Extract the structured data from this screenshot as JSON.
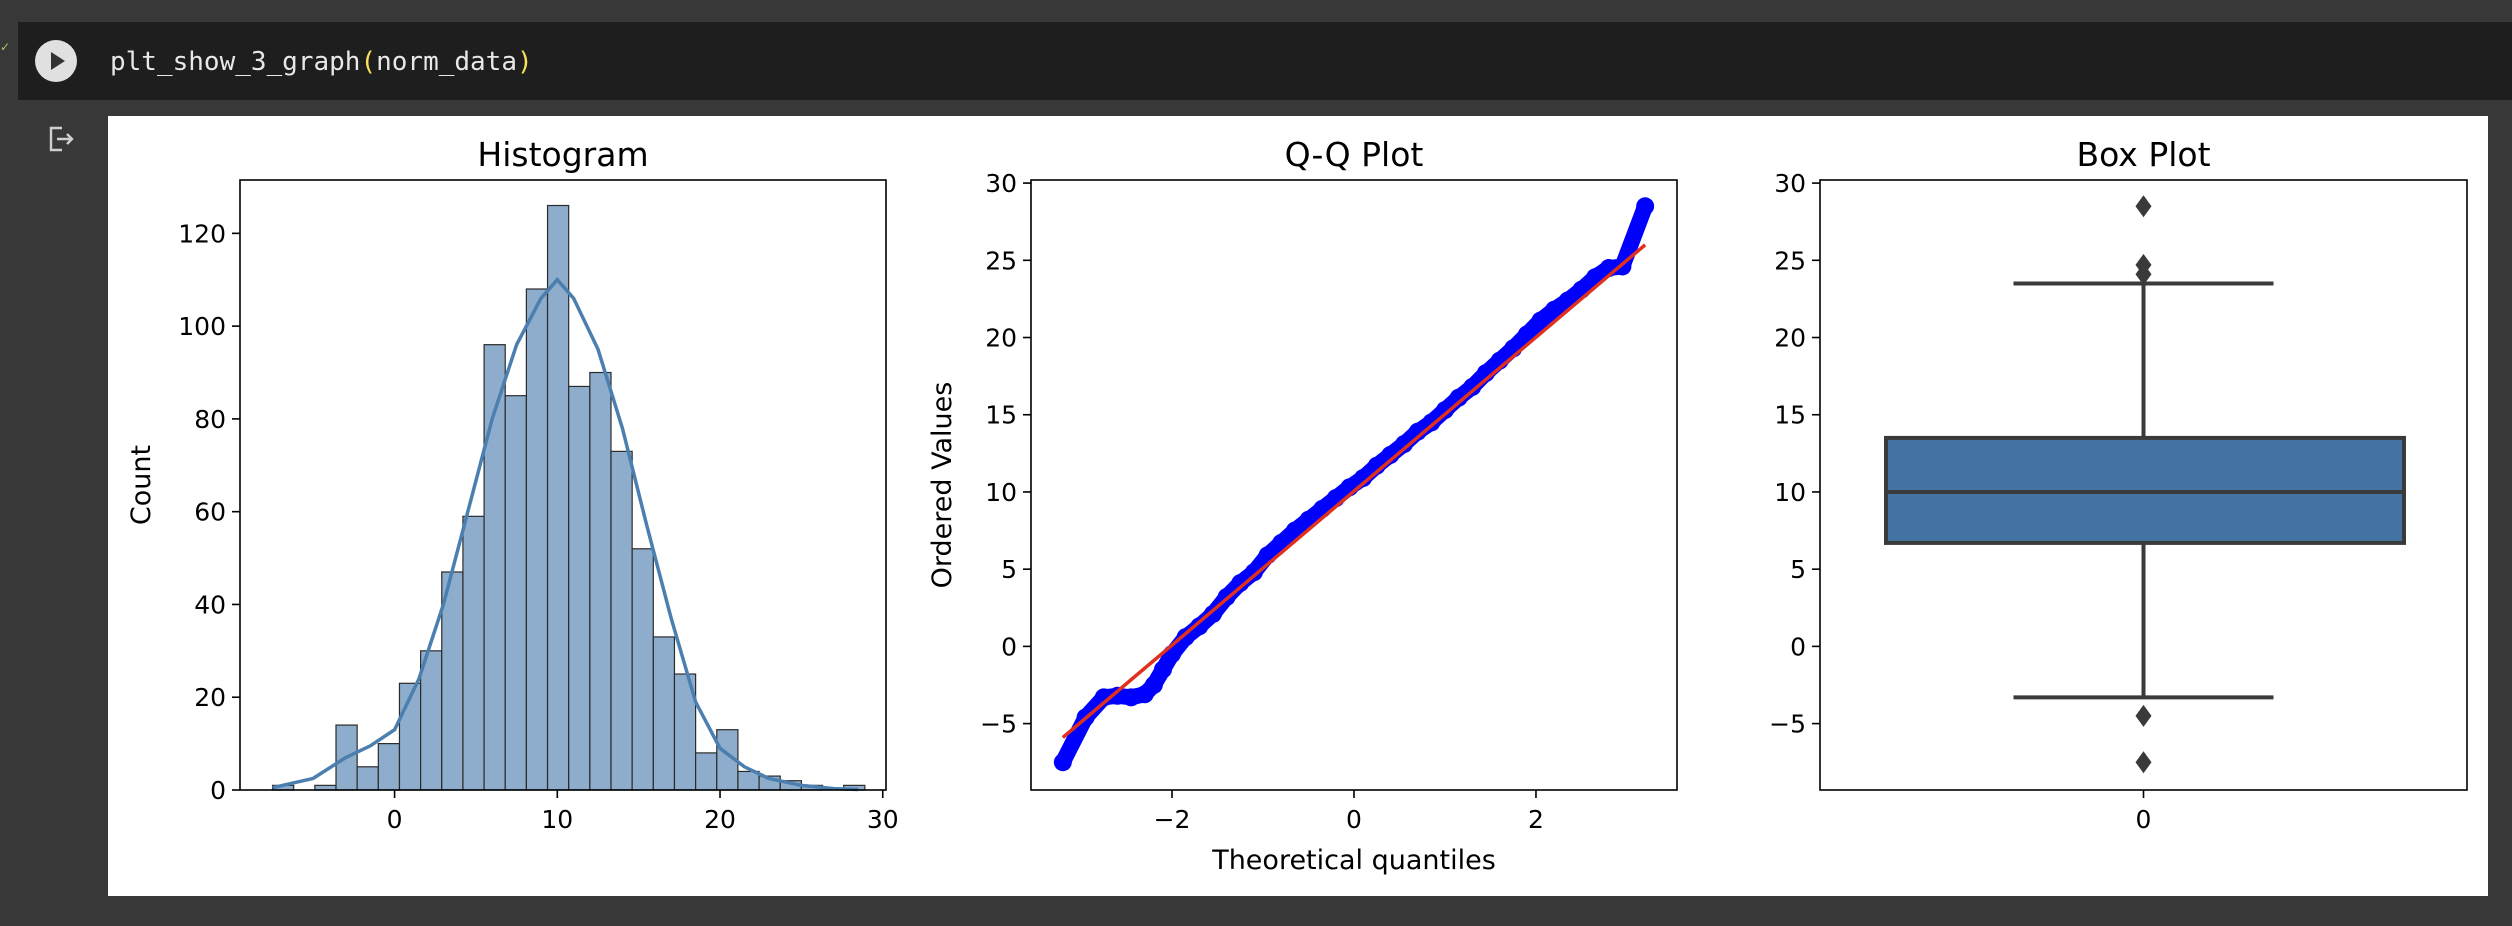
{
  "cell": {
    "code_fn": "plt_show_3_graph",
    "code_open": "(",
    "code_arg": "norm_data",
    "code_close": ")"
  },
  "colors": {
    "hist_fill": "#8eadcc",
    "kde_line": "#4a7fb0",
    "qq_points": "#0000ff",
    "qq_line": "#e0301e",
    "box_fill": "#4273a3",
    "box_line": "#3a3a3a"
  },
  "chart_data": [
    {
      "type": "bar",
      "title": "Histogram",
      "xlabel": "",
      "ylabel": "Count",
      "xlim": [
        -9.5,
        30.2
      ],
      "ylim": [
        0,
        131.5
      ],
      "xticks": [
        0,
        10,
        20,
        30
      ],
      "yticks": [
        0,
        20,
        40,
        60,
        80,
        100,
        120
      ],
      "bin_edges": [
        -7.5,
        -6.2,
        -4.9,
        -3.6,
        -2.3,
        -1.0,
        0.3,
        1.6,
        2.9,
        4.2,
        5.5,
        6.8,
        8.1,
        9.4,
        10.7,
        12.0,
        13.3,
        14.6,
        15.9,
        17.2,
        18.5,
        19.8,
        21.1,
        22.4,
        23.7,
        25.0,
        26.3,
        27.6,
        28.9
      ],
      "counts": [
        1,
        0,
        1,
        14,
        5,
        10,
        23,
        30,
        47,
        59,
        96,
        85,
        108,
        126,
        87,
        90,
        73,
        52,
        33,
        25,
        8,
        13,
        4,
        3,
        2,
        1,
        0,
        1
      ],
      "kde": [
        [
          -7.5,
          0.5
        ],
        [
          -5,
          2.5
        ],
        [
          -3,
          7
        ],
        [
          -1.5,
          9.5
        ],
        [
          0,
          13
        ],
        [
          1.5,
          24
        ],
        [
          3,
          40
        ],
        [
          4.5,
          60
        ],
        [
          6,
          80
        ],
        [
          7.5,
          96
        ],
        [
          9,
          106
        ],
        [
          10,
          110
        ],
        [
          11,
          106
        ],
        [
          12.5,
          95
        ],
        [
          14,
          78
        ],
        [
          15.5,
          57
        ],
        [
          17,
          37
        ],
        [
          18.5,
          19
        ],
        [
          20,
          9
        ],
        [
          21.5,
          5
        ],
        [
          23,
          2.5
        ],
        [
          25,
          1
        ],
        [
          27,
          0.3
        ],
        [
          28.5,
          0.1
        ]
      ]
    },
    {
      "type": "scatter",
      "title": "Q-Q Plot",
      "xlabel": "Theoretical quantiles",
      "ylabel": "Ordered Values",
      "xlim": [
        -3.55,
        3.55
      ],
      "ylim": [
        -9.3,
        30.2
      ],
      "xticks": [
        -2,
        0,
        2
      ],
      "xtick_labels": [
        "−2",
        "0",
        "2"
      ],
      "yticks": [
        -5,
        0,
        5,
        10,
        15,
        20,
        25,
        30
      ],
      "ytick_labels": [
        "−5",
        "0",
        "5",
        "10",
        "15",
        "20",
        "25",
        "30"
      ],
      "fit_line": [
        [
          -3.2,
          -5.9
        ],
        [
          3.2,
          26.0
        ]
      ],
      "points": [
        [
          -3.2,
          -7.5
        ],
        [
          -2.95,
          -4.6
        ],
        [
          -2.75,
          -3.3
        ],
        [
          -2.6,
          -3.2
        ],
        [
          -2.45,
          -3.3
        ],
        [
          -2.3,
          -3.1
        ],
        [
          -2.2,
          -2.5
        ],
        [
          -2.1,
          -1.5
        ],
        [
          -2.0,
          -0.5
        ],
        [
          -1.85,
          0.6
        ],
        [
          -1.7,
          1.3
        ],
        [
          -1.55,
          2.1
        ],
        [
          -1.4,
          3.2
        ],
        [
          -1.25,
          4.1
        ],
        [
          -1.1,
          4.8
        ],
        [
          -0.95,
          5.9
        ],
        [
          -0.8,
          6.7
        ],
        [
          -0.65,
          7.5
        ],
        [
          -0.5,
          8.2
        ],
        [
          -0.35,
          8.9
        ],
        [
          -0.2,
          9.6
        ],
        [
          -0.05,
          10.3
        ],
        [
          0.1,
          10.9
        ],
        [
          0.25,
          11.7
        ],
        [
          0.4,
          12.4
        ],
        [
          0.55,
          13.1
        ],
        [
          0.7,
          13.9
        ],
        [
          0.85,
          14.5
        ],
        [
          1.0,
          15.3
        ],
        [
          1.15,
          16.1
        ],
        [
          1.3,
          16.8
        ],
        [
          1.45,
          17.7
        ],
        [
          1.6,
          18.5
        ],
        [
          1.75,
          19.3
        ],
        [
          1.9,
          20.2
        ],
        [
          2.05,
          21.1
        ],
        [
          2.2,
          21.8
        ],
        [
          2.35,
          22.4
        ],
        [
          2.5,
          23.1
        ],
        [
          2.65,
          23.9
        ],
        [
          2.8,
          24.5
        ],
        [
          2.95,
          24.6
        ],
        [
          3.2,
          28.5
        ]
      ]
    },
    {
      "type": "box",
      "title": "Box Plot",
      "xtick_labels": [
        "0"
      ],
      "ylim": [
        -9.3,
        30.2
      ],
      "yticks": [
        -5,
        0,
        5,
        10,
        15,
        20,
        25,
        30
      ],
      "ytick_labels": [
        "−5",
        "0",
        "5",
        "10",
        "15",
        "20",
        "25",
        "30"
      ],
      "q1": 6.7,
      "median": 10.0,
      "q3": 13.5,
      "whisker_low": -3.3,
      "whisker_high": 23.5,
      "outliers": [
        28.5,
        24.7,
        24.1,
        -4.5,
        -7.5
      ]
    }
  ]
}
